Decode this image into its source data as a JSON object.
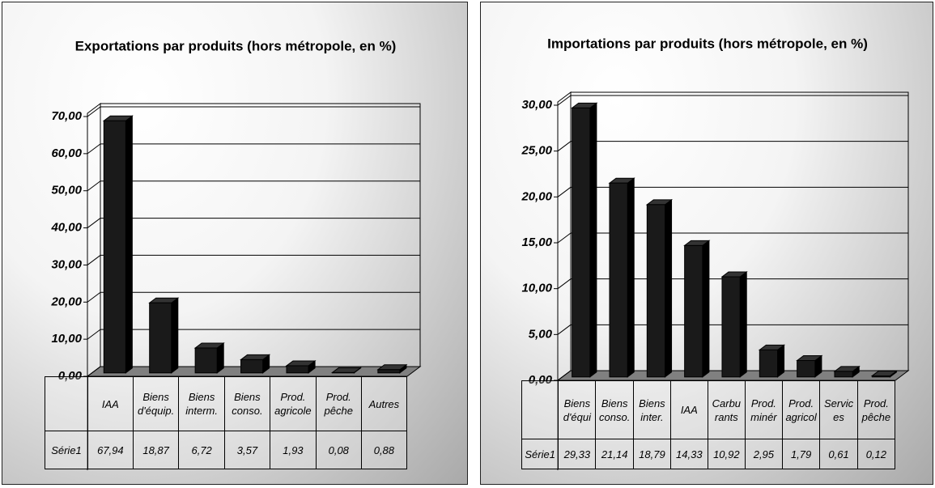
{
  "chart_data": [
    {
      "type": "bar",
      "title": "Exportations par produits (hors métropole, en %)",
      "categories": [
        "IAA",
        "Biens d'équip.",
        "Biens interm.",
        "Biens conso.",
        "Prod. agricole",
        "Prod. pêche",
        "Autres"
      ],
      "series": [
        {
          "name": "Série1",
          "color": "#1a1a1a",
          "values": [
            67.94,
            18.87,
            6.72,
            3.57,
            1.93,
            0.08,
            0.88
          ],
          "value_labels": [
            "67,94",
            "18,87",
            "6,72",
            "3,57",
            "1,93",
            "0,08",
            "0,88"
          ]
        }
      ],
      "ylim": [
        0,
        70
      ],
      "yticks": [
        {
          "value": 0,
          "label": "0,00"
        },
        {
          "value": 10,
          "label": "10,00"
        },
        {
          "value": 20,
          "label": "20,00"
        },
        {
          "value": 30,
          "label": "30,00"
        },
        {
          "value": 40,
          "label": "40,00"
        },
        {
          "value": 50,
          "label": "50,00"
        },
        {
          "value": 60,
          "label": "60,00"
        },
        {
          "value": 70,
          "label": "70,00"
        }
      ],
      "grid": true
    },
    {
      "type": "bar",
      "title": "Importations par produits (hors métropole, en %)",
      "categories": [
        "Biens d'équi",
        "Biens conso.",
        "Biens inter.",
        "IAA",
        "Carbu rants",
        "Prod. minér",
        "Prod. agricol",
        "Servic es",
        "Prod. pêche"
      ],
      "series": [
        {
          "name": "Série1",
          "color": "#1a1a1a",
          "values": [
            29.33,
            21.14,
            18.79,
            14.33,
            10.92,
            2.95,
            1.79,
            0.61,
            0.12
          ],
          "value_labels": [
            "29,33",
            "21,14",
            "18,79",
            "14,33",
            "10,92",
            "2,95",
            "1,79",
            "0,61",
            "0,12"
          ]
        }
      ],
      "ylim": [
        0,
        30
      ],
      "yticks": [
        {
          "value": 0,
          "label": "0,00"
        },
        {
          "value": 5,
          "label": "5,00"
        },
        {
          "value": 10,
          "label": "10,00"
        },
        {
          "value": 15,
          "label": "15,00"
        },
        {
          "value": 20,
          "label": "20,00"
        },
        {
          "value": 25,
          "label": "25,00"
        },
        {
          "value": 30,
          "label": "30,00"
        }
      ],
      "grid": true
    }
  ]
}
